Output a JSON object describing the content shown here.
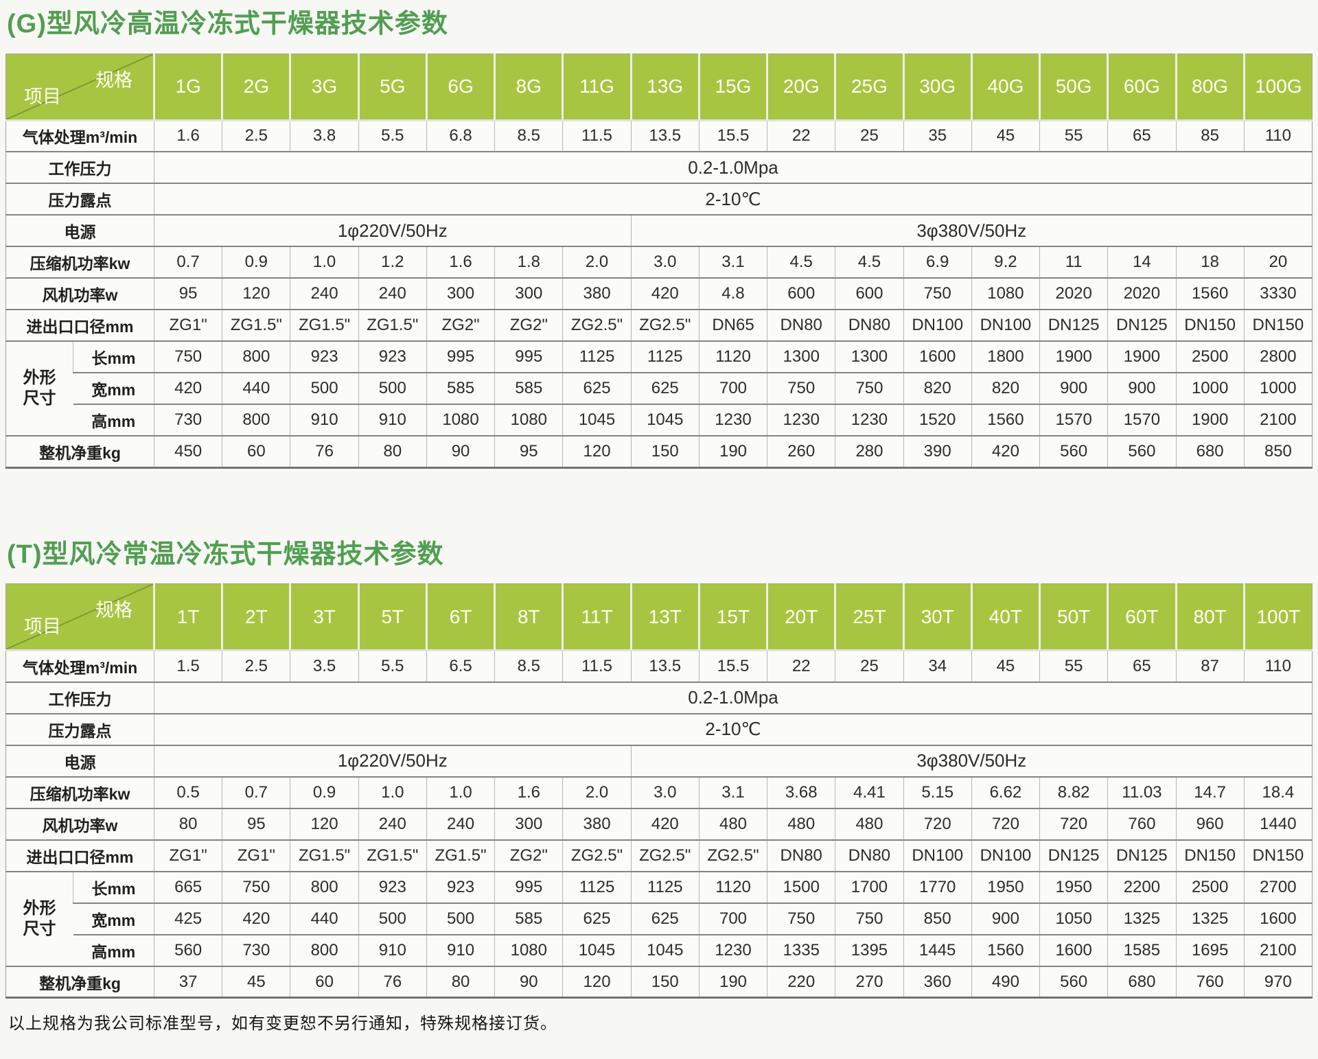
{
  "page": {
    "footer_note": "以上规格为我公司标准型号，如有变更恕不另行通知，特殊规格接订货。"
  },
  "colors": {
    "header_green": "#a8c542",
    "title_green": "#519e52"
  },
  "tables": [
    {
      "name": "G",
      "title": "(G)型风冷高温冷冻式干燥器技术参数",
      "corner": {
        "spec": "规格",
        "item": "项目"
      },
      "models": [
        "1G",
        "2G",
        "3G",
        "5G",
        "6G",
        "8G",
        "11G",
        "13G",
        "15G",
        "20G",
        "25G",
        "30G",
        "40G",
        "50G",
        "60G",
        "80G",
        "100G"
      ],
      "rows": [
        {
          "kind": "values",
          "label": "气体处理m³/min",
          "values": [
            "1.6",
            "2.5",
            "3.8",
            "5.5",
            "6.8",
            "8.5",
            "11.5",
            "13.5",
            "15.5",
            "22",
            "25",
            "35",
            "45",
            "55",
            "65",
            "85",
            "110"
          ]
        },
        {
          "kind": "merged",
          "label": "工作压力",
          "value": "0.2-1.0Mpa"
        },
        {
          "kind": "merged",
          "label": "压力露点",
          "value": "2-10℃"
        },
        {
          "kind": "split",
          "label": "电源",
          "cells": [
            {
              "value": "1φ220V/50Hz",
              "span": 7
            },
            {
              "value": "3φ380V/50Hz",
              "span": 10
            }
          ]
        },
        {
          "kind": "values",
          "label": "压缩机功率kw",
          "values": [
            "0.7",
            "0.9",
            "1.0",
            "1.2",
            "1.6",
            "1.8",
            "2.0",
            "3.0",
            "3.1",
            "4.5",
            "4.5",
            "6.9",
            "9.2",
            "11",
            "14",
            "18",
            "20"
          ]
        },
        {
          "kind": "values",
          "label": "风机功率w",
          "values": [
            "95",
            "120",
            "240",
            "240",
            "300",
            "300",
            "380",
            "420",
            "4.8",
            "600",
            "600",
            "750",
            "1080",
            "2020",
            "2020",
            "1560",
            "3330"
          ]
        },
        {
          "kind": "values",
          "label": "进出口口径mm",
          "values": [
            "ZG1\"",
            "ZG1.5\"",
            "ZG1.5\"",
            "ZG1.5\"",
            "ZG2\"",
            "ZG2\"",
            "ZG2.5\"",
            "ZG2.5\"",
            "DN65",
            "DN80",
            "DN80",
            "DN100",
            "DN100",
            "DN125",
            "DN125",
            "DN150",
            "DN150"
          ]
        },
        {
          "kind": "dims",
          "label": "外形尺寸",
          "label_lines": [
            "外形",
            "尺寸"
          ],
          "sub": [
            {
              "label": "长mm",
              "values": [
                "750",
                "800",
                "923",
                "923",
                "995",
                "995",
                "1125",
                "1125",
                "1120",
                "1300",
                "1300",
                "1600",
                "1800",
                "1900",
                "1900",
                "2500",
                "2800"
              ]
            },
            {
              "label": "宽mm",
              "values": [
                "420",
                "440",
                "500",
                "500",
                "585",
                "585",
                "625",
                "625",
                "700",
                "750",
                "750",
                "820",
                "820",
                "900",
                "900",
                "1000",
                "1000"
              ]
            },
            {
              "label": "高mm",
              "values": [
                "730",
                "800",
                "910",
                "910",
                "1080",
                "1080",
                "1045",
                "1045",
                "1230",
                "1230",
                "1230",
                "1520",
                "1560",
                "1570",
                "1570",
                "1900",
                "2100"
              ]
            }
          ]
        },
        {
          "kind": "values",
          "label": "整机净重kg",
          "values": [
            "450",
            "60",
            "76",
            "80",
            "90",
            "95",
            "120",
            "150",
            "190",
            "260",
            "280",
            "390",
            "420",
            "560",
            "560",
            "680",
            "850"
          ]
        }
      ]
    },
    {
      "name": "T",
      "title": "(T)型风冷常温冷冻式干燥器技术参数",
      "corner": {
        "spec": "规格",
        "item": "项目"
      },
      "models": [
        "1T",
        "2T",
        "3T",
        "5T",
        "6T",
        "8T",
        "11T",
        "13T",
        "15T",
        "20T",
        "25T",
        "30T",
        "40T",
        "50T",
        "60T",
        "80T",
        "100T"
      ],
      "rows": [
        {
          "kind": "values",
          "label": "气体处理m³/min",
          "values": [
            "1.5",
            "2.5",
            "3.5",
            "5.5",
            "6.5",
            "8.5",
            "11.5",
            "13.5",
            "15.5",
            "22",
            "25",
            "34",
            "45",
            "55",
            "65",
            "87",
            "110"
          ]
        },
        {
          "kind": "merged",
          "label": "工作压力",
          "value": "0.2-1.0Mpa"
        },
        {
          "kind": "merged",
          "label": "压力露点",
          "value": "2-10℃"
        },
        {
          "kind": "split",
          "label": "电源",
          "cells": [
            {
              "value": "1φ220V/50Hz",
              "span": 7
            },
            {
              "value": "3φ380V/50Hz",
              "span": 10
            }
          ]
        },
        {
          "kind": "values",
          "label": "压缩机功率kw",
          "values": [
            "0.5",
            "0.7",
            "0.9",
            "1.0",
            "1.0",
            "1.6",
            "2.0",
            "3.0",
            "3.1",
            "3.68",
            "4.41",
            "5.15",
            "6.62",
            "8.82",
            "11.03",
            "14.7",
            "18.4"
          ]
        },
        {
          "kind": "values",
          "label": "风机功率w",
          "values": [
            "80",
            "95",
            "120",
            "240",
            "240",
            "300",
            "380",
            "420",
            "480",
            "480",
            "480",
            "720",
            "720",
            "720",
            "760",
            "960",
            "1440"
          ]
        },
        {
          "kind": "values",
          "label": "进出口口径mm",
          "values": [
            "ZG1\"",
            "ZG1\"",
            "ZG1.5\"",
            "ZG1.5\"",
            "ZG1.5\"",
            "ZG2\"",
            "ZG2.5\"",
            "ZG2.5\"",
            "ZG2.5\"",
            "DN80",
            "DN80",
            "DN100",
            "DN100",
            "DN125",
            "DN125",
            "DN150",
            "DN150"
          ]
        },
        {
          "kind": "dims",
          "label": "外形尺寸",
          "label_lines": [
            "外形",
            "尺寸"
          ],
          "sub": [
            {
              "label": "长mm",
              "values": [
                "665",
                "750",
                "800",
                "923",
                "923",
                "995",
                "1125",
                "1125",
                "1120",
                "1500",
                "1700",
                "1770",
                "1950",
                "1950",
                "2200",
                "2500",
                "2700"
              ]
            },
            {
              "label": "宽mm",
              "values": [
                "425",
                "420",
                "440",
                "500",
                "500",
                "585",
                "625",
                "625",
                "700",
                "750",
                "750",
                "850",
                "900",
                "1050",
                "1325",
                "1325",
                "1600"
              ]
            },
            {
              "label": "高mm",
              "values": [
                "560",
                "730",
                "800",
                "910",
                "910",
                "1080",
                "1045",
                "1045",
                "1230",
                "1335",
                "1395",
                "1445",
                "1560",
                "1600",
                "1585",
                "1695",
                "2100"
              ]
            }
          ]
        },
        {
          "kind": "values",
          "label": "整机净重kg",
          "values": [
            "37",
            "45",
            "60",
            "76",
            "80",
            "90",
            "120",
            "150",
            "190",
            "220",
            "270",
            "360",
            "490",
            "560",
            "680",
            "760",
            "970"
          ]
        }
      ]
    }
  ]
}
